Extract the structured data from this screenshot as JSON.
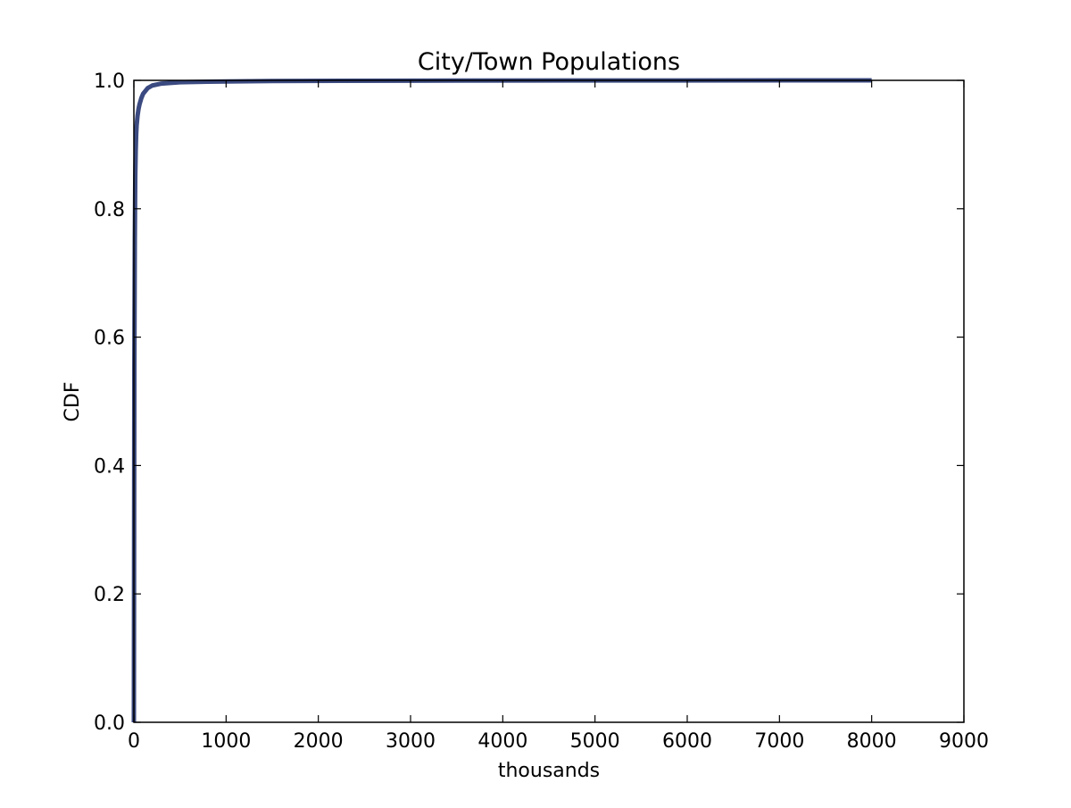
{
  "chart_data": {
    "type": "line",
    "title": "City/Town Populations",
    "xlabel": "thousands",
    "ylabel": "CDF",
    "xlim": [
      0,
      9000
    ],
    "ylim": [
      0.0,
      1.0
    ],
    "xticks": [
      0,
      1000,
      2000,
      3000,
      4000,
      5000,
      6000,
      7000,
      8000,
      9000
    ],
    "xtick_labels": [
      "0",
      "1000",
      "2000",
      "3000",
      "4000",
      "5000",
      "6000",
      "7000",
      "8000",
      "9000"
    ],
    "yticks": [
      0.0,
      0.2,
      0.4,
      0.6,
      0.8,
      1.0
    ],
    "ytick_labels": [
      "0.0",
      "0.2",
      "0.4",
      "0.6",
      "0.8",
      "1.0"
    ],
    "grid": false,
    "legend": "none",
    "line_color": "#3b4a80",
    "series": [
      {
        "x": [
          0,
          5,
          10,
          15,
          20,
          25,
          30,
          40,
          50,
          60,
          80,
          100,
          150,
          200,
          300,
          500,
          800,
          1500,
          3000,
          5000,
          8000
        ],
        "y": [
          0.0,
          0.55,
          0.75,
          0.85,
          0.89,
          0.915,
          0.93,
          0.945,
          0.955,
          0.962,
          0.972,
          0.979,
          0.988,
          0.992,
          0.995,
          0.997,
          0.998,
          0.999,
          0.9995,
          0.9998,
          1.0
        ]
      }
    ]
  }
}
